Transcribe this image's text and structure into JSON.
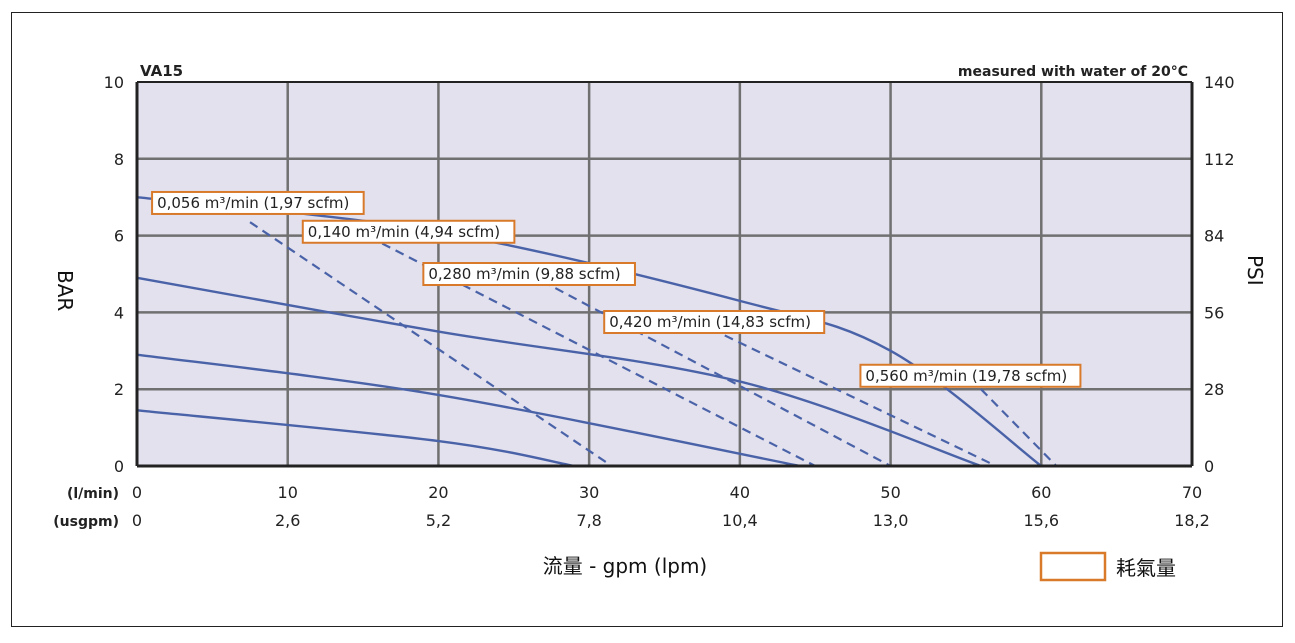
{
  "chart_data": {
    "type": "line",
    "title": "VA15",
    "note": "measured with water of 20°C",
    "xlabel": "流量 - gpm (lpm)",
    "ylabel_left": "BAR",
    "ylabel_right": "PSI",
    "x_unit_primary": "(l/min)",
    "x_unit_secondary": "(usgpm)",
    "x_ticks_primary": [
      "0",
      "10",
      "20",
      "30",
      "40",
      "50",
      "60",
      "70"
    ],
    "x_ticks_secondary": [
      "0",
      "2,6",
      "5,2",
      "7,8",
      "10,4",
      "13,0",
      "15,6",
      "18,2"
    ],
    "y_ticks_left": [
      "0",
      "2",
      "4",
      "6",
      "8",
      "10"
    ],
    "y_ticks_right": [
      "0",
      "28",
      "56",
      "84",
      "112",
      "140"
    ],
    "xlim": [
      0,
      70
    ],
    "ylim": [
      0,
      10
    ],
    "grid": true,
    "legend": {
      "label": "耗氣量",
      "position": "bottom-right",
      "color": "#d87a2a"
    },
    "line_color": "#4a63a8",
    "plot_bg": "#e3e1ee",
    "pressure_curves": [
      {
        "points": [
          [
            0,
            7.0
          ],
          [
            20,
            6.1
          ],
          [
            40,
            4.3
          ],
          [
            50,
            3.0
          ],
          [
            60,
            0
          ]
        ]
      },
      {
        "points": [
          [
            0,
            4.9
          ],
          [
            20,
            3.5
          ],
          [
            40,
            2.2
          ],
          [
            56,
            0
          ]
        ]
      },
      {
        "points": [
          [
            0,
            2.9
          ],
          [
            20,
            1.85
          ],
          [
            44,
            0
          ]
        ]
      },
      {
        "points": [
          [
            0,
            1.45
          ],
          [
            20,
            0.65
          ],
          [
            29,
            0
          ]
        ]
      }
    ],
    "air_consumption_curves": [
      {
        "label": "0,056 m³/min (1,97 scfm)",
        "points": [
          [
            7.5,
            6.35
          ],
          [
            31.5,
            0
          ]
        ]
      },
      {
        "label": "0,140 m³/min (4,94 scfm)",
        "points": [
          [
            14.5,
            6.15
          ],
          [
            45,
            0
          ]
        ]
      },
      {
        "label": "0,280 m³/min (9,88 scfm)",
        "points": [
          [
            26,
            5.0
          ],
          [
            50,
            0
          ]
        ]
      },
      {
        "label": "0,420 m³/min (14,83 scfm)",
        "points": [
          [
            39,
            3.4
          ],
          [
            57,
            0
          ]
        ]
      },
      {
        "label": "0,560 m³/min (19,78 scfm)",
        "points": [
          [
            56,
            2.0
          ],
          [
            61,
            0
          ]
        ]
      }
    ],
    "label_anchors": [
      [
        1,
        6.85
      ],
      [
        11,
        6.1
      ],
      [
        19,
        5.0
      ],
      [
        31,
        3.75
      ],
      [
        48,
        2.35
      ]
    ]
  }
}
